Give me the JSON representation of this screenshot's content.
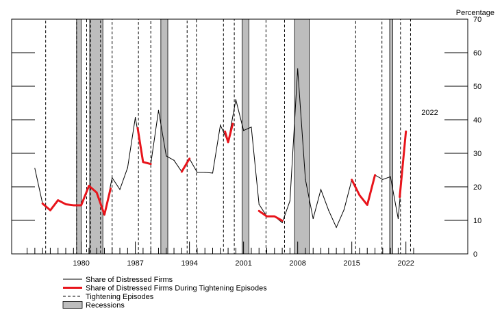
{
  "chart_data": {
    "type": "line",
    "title": "",
    "ylabel": "Percentage",
    "xlabel": "",
    "xlim": [
      1971,
      2030
    ],
    "ylim": [
      0,
      70
    ],
    "y_ticks": [
      0,
      10,
      20,
      30,
      40,
      50,
      60,
      70
    ],
    "x_ticks": [
      1980,
      1987,
      1994,
      2001,
      2008,
      2015,
      2022
    ],
    "annotation": {
      "text": "2022",
      "x": 2024.0,
      "y": 36.5
    },
    "series": [
      {
        "name": "Share of Distressed Firms",
        "color": "#000000",
        "style": "solid",
        "points": [
          [
            1974,
            25.5
          ],
          [
            1975,
            15.0
          ],
          [
            1976,
            13.0
          ],
          [
            1977,
            16.0
          ],
          [
            1978,
            14.8
          ],
          [
            1979,
            14.5
          ],
          [
            1980,
            14.5
          ],
          [
            1981,
            20.3
          ],
          [
            1982,
            18.3
          ],
          [
            1983,
            11.7
          ],
          [
            1984,
            22.7
          ],
          [
            1985,
            19.2
          ],
          [
            1986,
            25.7
          ],
          [
            1987,
            40.7
          ],
          [
            1988,
            27.4
          ],
          [
            1989,
            26.8
          ],
          [
            1990,
            42.8
          ],
          [
            1991,
            29.2
          ],
          [
            1992,
            27.9
          ],
          [
            1993,
            24.5
          ],
          [
            1994,
            28.4
          ],
          [
            1995,
            24.3
          ],
          [
            1996,
            24.3
          ],
          [
            1997,
            24.1
          ],
          [
            1998,
            38.4
          ],
          [
            1999,
            33.3
          ],
          [
            2000,
            46.0
          ],
          [
            2001,
            36.8
          ],
          [
            2002,
            37.8
          ],
          [
            2003,
            14.8
          ],
          [
            2004,
            11.2
          ],
          [
            2005,
            11.2
          ],
          [
            2006,
            9.3
          ],
          [
            2007,
            15.8
          ],
          [
            2008,
            55.2
          ],
          [
            2009,
            22.2
          ],
          [
            2010,
            10.5
          ],
          [
            2011,
            19.2
          ],
          [
            2012,
            13.0
          ],
          [
            2013,
            7.9
          ],
          [
            2014,
            13.2
          ],
          [
            2015,
            22.1
          ],
          [
            2016,
            17.5
          ],
          [
            2017,
            14.6
          ],
          [
            2018,
            23.5
          ],
          [
            2019,
            22.2
          ],
          [
            2020,
            23.0
          ],
          [
            2021,
            10.5
          ],
          [
            2022,
            36.5
          ]
        ]
      },
      {
        "name": "Share of Distressed Firms During Tightening Episodes",
        "color": "#e8141b",
        "style": "solid",
        "segments": [
          [
            [
              1975,
              15.0
            ],
            [
              1976,
              13.0
            ],
            [
              1977,
              16.0
            ],
            [
              1978,
              14.8
            ],
            [
              1979,
              14.5
            ],
            [
              1980,
              14.5
            ],
            [
              1981,
              20.3
            ],
            [
              1982,
              18.3
            ],
            [
              1983,
              11.7
            ],
            [
              1983.8,
              19.5
            ]
          ],
          [
            [
              1987.3,
              37.5
            ],
            [
              1988,
              27.4
            ],
            [
              1989,
              26.8
            ]
          ],
          [
            [
              1993,
              24.5
            ],
            [
              1994,
              28.4
            ]
          ],
          [
            [
              1998.6,
              36.5
            ],
            [
              1999,
              33.3
            ],
            [
              1999.6,
              38.8
            ]
          ],
          [
            [
              2003,
              12.8
            ],
            [
              2004,
              11.2
            ],
            [
              2005,
              11.2
            ],
            [
              2006,
              9.9
            ]
          ],
          [
            [
              2015,
              22.1
            ],
            [
              2016,
              17.5
            ],
            [
              2017,
              14.6
            ],
            [
              2018,
              23.5
            ]
          ],
          [
            [
              2021.2,
              17.0
            ],
            [
              2022,
              36.5
            ]
          ]
        ]
      }
    ],
    "tightening_episodes": [
      [
        1975.4,
        1979.4
      ],
      [
        1980.7,
        1981.2
      ],
      [
        1982.5,
        1984.0
      ],
      [
        1987.4,
        1989.0
      ],
      [
        1993.7,
        1994.9
      ],
      [
        1998.4,
        1999.8
      ],
      [
        2003.9,
        2006.3
      ],
      [
        2015.5,
        2018.9
      ],
      [
        2021.3,
        2022.6
      ]
    ],
    "recessions": [
      [
        1979.4,
        1980.0
      ],
      [
        1981.1,
        1982.8
      ],
      [
        1990.3,
        1991.2
      ],
      [
        2000.8,
        2001.7
      ],
      [
        2007.6,
        2009.5
      ],
      [
        2019.9,
        2020.3
      ]
    ],
    "legend": {
      "placement": "bottom-left",
      "entries": [
        {
          "label": "Share of Distressed Firms",
          "swatch": "thin-line",
          "color": "#000000"
        },
        {
          "label": "Share of Distressed Firms During Tightening Episodes",
          "swatch": "thick-line",
          "color": "#e8141b"
        },
        {
          "label": "Tightening Episodes",
          "swatch": "dashed-line",
          "color": "#000000"
        },
        {
          "label": "Recessions",
          "swatch": "box",
          "color": "#bdbdbd"
        }
      ]
    }
  }
}
